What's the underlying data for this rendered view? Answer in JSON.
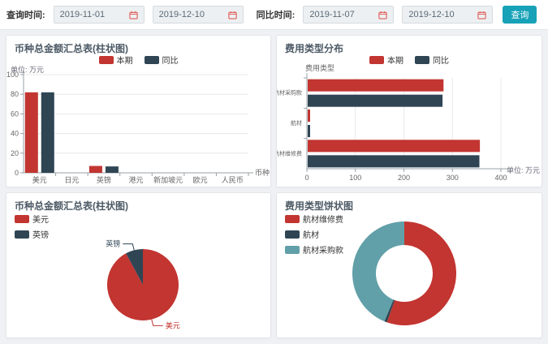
{
  "toolbar": {
    "query_label": "查询时间:",
    "compare_label": "同比时间:",
    "query_start": "2019-11-01",
    "query_end": "2019-12-10",
    "compare_start": "2019-11-07",
    "compare_end": "2019-12-10",
    "search_button": "查询"
  },
  "colors": {
    "current_period": "#c23531",
    "compare_period": "#2f4554",
    "teal": "#61a0a8",
    "button": "#17a2b8"
  },
  "chart_data": [
    {
      "type": "bar",
      "title": "币种总金额汇总表(柱状图)",
      "unit_label": "单位: 万元",
      "axis_name": "币种",
      "categories": [
        "美元",
        "日元",
        "英镑",
        "港元",
        "新加坡元",
        "欧元",
        "人民币"
      ],
      "series": [
        {
          "name": "本期",
          "color": "#c23531",
          "values": [
            82,
            0,
            7,
            0,
            0,
            0,
            0
          ]
        },
        {
          "name": "同比",
          "color": "#2f4554",
          "values": [
            82,
            0,
            6.5,
            0,
            0,
            0,
            0
          ]
        }
      ],
      "ylim": [
        0,
        100
      ],
      "yticks": [
        0,
        20,
        40,
        60,
        80,
        100
      ],
      "legend_position": "top-center",
      "grid": true
    },
    {
      "type": "horizontal-bar",
      "title": "费用类型分布",
      "unit_label": "单位: 万元",
      "axis_name": "费用类型",
      "categories": [
        "航材维修费",
        "航材",
        "航材采购款"
      ],
      "series": [
        {
          "name": "本期",
          "color": "#c23531",
          "values": [
            355,
            5,
            280
          ]
        },
        {
          "name": "同比",
          "color": "#2f4554",
          "values": [
            354,
            5,
            278
          ]
        }
      ],
      "xlim": [
        0,
        400
      ],
      "xticks": [
        0,
        100,
        200,
        300,
        400
      ],
      "legend_position": "top-center",
      "grid": true
    },
    {
      "type": "pie",
      "title": "币种总金额汇总表(柱状图)",
      "legend_position": "top-left",
      "slices": [
        {
          "name": "美元",
          "value": 82,
          "color": "#c23531"
        },
        {
          "name": "英镑",
          "value": 7,
          "color": "#2f4554"
        }
      ]
    },
    {
      "type": "donut",
      "title": "费用类型饼状图",
      "legend_position": "top-left",
      "slices": [
        {
          "name": "航材维修费",
          "value": 355,
          "color": "#c23531"
        },
        {
          "name": "航材",
          "value": 5,
          "color": "#2f4554"
        },
        {
          "name": "航材采购款",
          "value": 280,
          "color": "#61a0a8"
        }
      ]
    }
  ]
}
